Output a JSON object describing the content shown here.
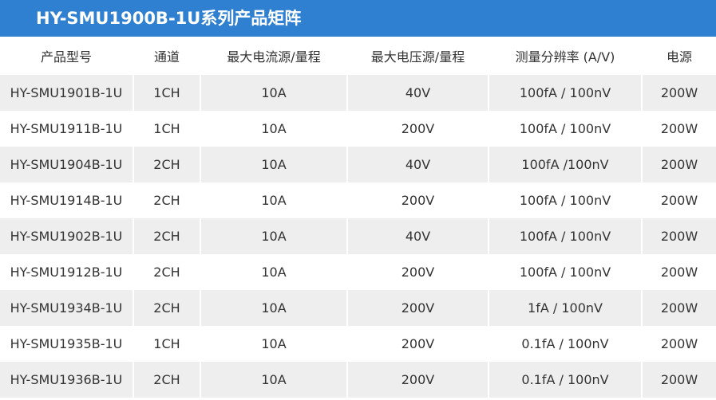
{
  "header": {
    "title": "HY-SMU1900B-1U系列产品矩阵"
  },
  "table": {
    "columns": [
      "产品型号",
      "通道",
      "最大电流源/量程",
      "最大电压源/量程",
      "测量分辨率 (A/V)",
      "电源"
    ],
    "rows": [
      [
        "HY-SMU1901B-1U",
        "1CH",
        "10A",
        "40V",
        "100fA / 100nV",
        "200W"
      ],
      [
        "HY-SMU1911B-1U",
        "1CH",
        "10A",
        "200V",
        "100fA / 100nV",
        "200W"
      ],
      [
        "HY-SMU1904B-1U",
        "2CH",
        "10A",
        "40V",
        "100fA /100nV",
        "200W"
      ],
      [
        "HY-SMU1914B-1U",
        "2CH",
        "10A",
        "200V",
        "100fA / 100nV",
        "200W"
      ],
      [
        "HY-SMU1902B-1U",
        "2CH",
        "10A",
        "40V",
        "100fA / 100nV",
        "200W"
      ],
      [
        "HY-SMU1912B-1U",
        "2CH",
        "10A",
        "200V",
        "100fA / 100nV",
        "200W"
      ],
      [
        "HY-SMU1934B-1U",
        "2CH",
        "10A",
        "200V",
        "1fA / 100nV",
        "200W"
      ],
      [
        "HY-SMU1935B-1U",
        "1CH",
        "10A",
        "200V",
        "0.1fA / 100nV",
        "200W"
      ],
      [
        "HY-SMU1936B-1U",
        "2CH",
        "10A",
        "200V",
        "0.1fA / 100nV",
        "200W"
      ]
    ]
  }
}
